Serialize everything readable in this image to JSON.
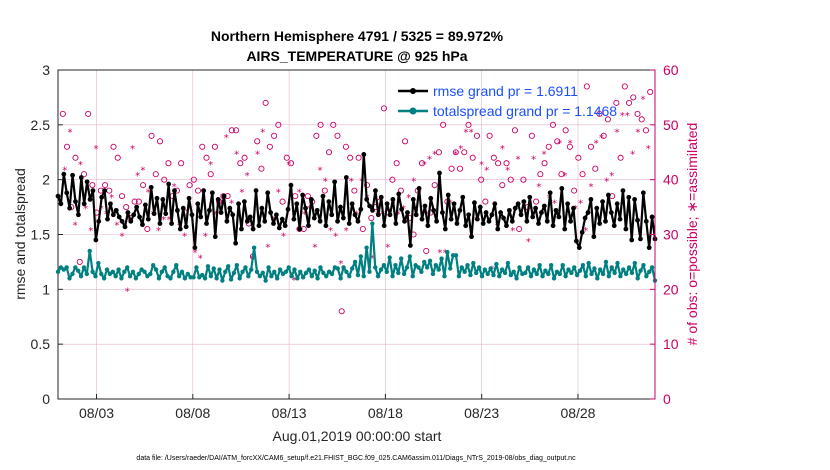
{
  "colors": {
    "rmse": "#000000",
    "spread": "#008080",
    "obs": "#cc0066",
    "legend_text": "#1a4fff",
    "grid": "#e6b3cc"
  },
  "chart_data": {
    "type": "line",
    "title_line1": "Northern Hemisphere 4791 / 5325 = 89.972%",
    "title_line2": "AIRS_TEMPERATURE @ 925 hPa",
    "xlabel": "Aug.01,2019 00:00:00 start",
    "ylabel": "rmse and totalspread",
    "y2label": "# of obs: o=possible; ∗=assimilated",
    "footnote": "data file: /Users/raeder/DAI/ATM_forcXX/CAM6_setup/f.e21.FHIST_BGC.f09_025.CAM6assim.011/Diags_NTrS_2019-08/obs_diag_output.nc",
    "xlim": [
      1.0,
      32.0
    ],
    "ylim": [
      0,
      3
    ],
    "y2lim": [
      0,
      60
    ],
    "xticks": [
      3,
      8,
      13,
      18,
      23,
      28
    ],
    "xtick_labels": [
      "08/03",
      "08/08",
      "08/13",
      "08/18",
      "08/23",
      "08/28"
    ],
    "yticks": [
      "0",
      "0.5",
      "1",
      "1.5",
      "2",
      "2.5",
      "3"
    ],
    "y2ticks": [
      "0",
      "10",
      "20",
      "30",
      "40",
      "50",
      "60"
    ],
    "legend": [
      {
        "label": "rmse grand pr = 1.6911",
        "series": "rmse"
      },
      {
        "label": "totalspread grand pr = 1.1468",
        "series": "spread"
      }
    ],
    "series": [
      {
        "name": "rmse",
        "values": [
          1.85,
          1.78,
          2.05,
          1.88,
          1.74,
          2.04,
          1.8,
          1.68,
          2.02,
          1.78,
          1.98,
          1.82,
          1.9,
          1.45,
          1.62,
          1.84,
          1.9,
          1.64,
          1.78,
          1.68,
          1.72,
          1.66,
          1.62,
          1.57,
          1.7,
          1.62,
          1.68,
          1.75,
          1.66,
          1.59,
          1.77,
          1.64,
          1.93,
          1.69,
          1.83,
          1.6,
          1.82,
          1.69,
          1.96,
          1.6,
          1.9,
          1.72,
          1.55,
          1.74,
          1.57,
          1.83,
          1.68,
          1.38,
          1.78,
          1.66,
          1.9,
          1.6,
          1.72,
          1.88,
          1.48,
          1.82,
          1.7,
          1.85,
          1.62,
          1.74,
          1.68,
          1.42,
          1.78,
          1.55,
          1.8,
          1.62,
          1.66,
          1.55,
          1.9,
          1.58,
          1.74,
          1.62,
          1.88,
          1.7,
          1.6,
          1.68,
          1.56,
          1.64,
          1.58,
          1.73,
          1.95,
          1.64,
          1.78,
          1.55,
          1.86,
          1.74,
          1.58,
          1.82,
          1.65,
          1.72,
          1.62,
          1.85,
          1.58,
          1.8,
          1.68,
          1.98,
          1.62,
          1.75,
          1.65,
          2.02,
          1.6,
          1.78,
          1.68,
          1.62,
          1.73,
          2.23,
          1.82,
          1.76,
          1.72,
          1.9,
          1.68,
          1.84,
          1.58,
          1.78,
          1.68,
          1.82,
          1.6,
          1.87,
          1.73,
          1.62,
          1.7,
          1.4,
          1.82,
          1.68,
          1.92,
          1.64,
          1.76,
          1.58,
          1.83,
          1.72,
          1.62,
          2.06,
          1.7,
          1.55,
          1.86,
          1.64,
          1.78,
          1.6,
          1.72,
          1.84,
          1.58,
          1.68,
          1.48,
          1.79,
          1.64,
          1.75,
          1.6,
          1.7,
          1.62,
          1.68,
          1.78,
          1.55,
          1.7,
          1.65,
          1.58,
          1.72,
          1.62,
          1.74,
          1.78,
          1.68,
          1.8,
          1.62,
          1.84,
          1.66,
          1.74,
          1.6,
          1.7,
          1.76,
          1.62,
          1.88,
          1.58,
          1.72,
          1.66,
          1.92,
          1.55,
          1.78,
          1.62,
          1.74,
          1.44,
          1.38,
          1.52,
          1.65,
          1.7,
          1.82,
          1.48,
          1.74,
          1.6,
          1.8,
          1.62,
          1.86,
          1.7,
          1.58,
          1.78,
          1.64,
          1.9,
          1.55,
          1.84,
          1.45,
          1.82,
          1.63,
          1.46,
          1.88,
          1.62,
          1.38,
          1.66,
          1.46
        ]
      },
      {
        "name": "totalspread",
        "values": [
          1.16,
          1.2,
          1.18,
          1.2,
          1.1,
          1.14,
          1.2,
          1.17,
          1.12,
          1.2,
          1.14,
          1.35,
          1.16,
          1.12,
          1.24,
          1.14,
          1.1,
          1.18,
          1.14,
          1.16,
          1.12,
          1.18,
          1.1,
          1.16,
          1.2,
          1.12,
          1.16,
          1.1,
          1.14,
          1.18,
          1.16,
          1.12,
          1.14,
          1.22,
          1.18,
          1.1,
          1.16,
          1.2,
          1.12,
          1.1,
          1.16,
          1.22,
          1.12,
          1.16,
          1.1,
          1.14,
          1.11,
          1.11,
          1.2,
          1.11,
          1.13,
          1.1,
          1.21,
          1.12,
          1.19,
          1.1,
          1.18,
          1.08,
          1.16,
          1.21,
          1.09,
          1.15,
          1.22,
          1.1,
          1.16,
          1.2,
          1.12,
          1.18,
          1.38,
          1.16,
          1.12,
          1.15,
          1.08,
          1.2,
          1.12,
          1.16,
          1.1,
          1.18,
          1.14,
          1.16,
          1.2,
          1.12,
          1.18,
          1.1,
          1.16,
          1.11,
          1.15,
          1.18,
          1.12,
          1.17,
          1.1,
          1.2,
          1.15,
          1.12,
          1.16,
          1.14,
          1.2,
          1.19,
          1.1,
          1.2,
          1.16,
          1.12,
          1.19,
          1.25,
          1.13,
          1.3,
          1.12,
          1.38,
          1.16,
          1.6,
          1.2,
          1.12,
          1.18,
          1.22,
          1.16,
          1.29,
          1.12,
          1.22,
          1.15,
          1.28,
          1.14,
          1.2,
          1.3,
          1.12,
          1.22,
          1.2,
          1.16,
          1.25,
          1.2,
          1.26,
          1.14,
          1.22,
          1.18,
          1.28,
          1.12,
          1.34,
          1.19,
          1.31,
          1.31,
          1.12,
          1.2,
          1.16,
          1.22,
          1.13,
          1.24,
          1.15,
          1.2,
          1.12,
          1.18,
          1.14,
          1.19,
          1.13,
          1.23,
          1.12,
          1.18,
          1.15,
          1.24,
          1.13,
          1.16,
          1.1,
          1.2,
          1.14,
          1.15,
          1.2,
          1.12,
          1.18,
          1.14,
          1.22,
          1.12,
          1.17,
          1.14,
          1.22,
          1.1,
          1.16,
          1.14,
          1.22,
          1.12,
          1.18,
          1.15,
          1.2,
          1.13,
          1.17,
          1.22,
          1.12,
          1.24,
          1.14,
          1.19,
          1.1,
          1.18,
          1.14,
          1.25,
          1.12,
          1.2,
          1.15,
          1.24,
          1.12,
          1.18,
          1.14,
          1.2,
          1.15,
          1.24,
          1.1,
          1.17,
          1.22,
          1.12,
          1.16,
          1.2,
          1.08
        ]
      },
      {
        "name": "obs_possible",
        "axis": "right",
        "values": [
          52,
          46,
          35,
          44,
          25,
          41,
          52,
          39,
          34,
          38,
          39,
          38,
          46,
          44,
          37,
          35,
          33,
          36,
          36,
          39,
          31,
          48,
          41,
          47,
          40,
          43,
          37,
          38,
          43,
          34,
          39,
          40,
          38,
          46,
          44,
          41,
          46,
          36,
          37,
          37,
          49,
          49,
          43,
          44,
          32,
          26,
          47,
          42,
          54,
          46,
          48,
          50,
          36,
          44,
          43,
          37,
          31,
          31,
          37,
          36,
          48,
          50,
          38,
          45,
          50,
          48,
          16,
          46,
          44,
          38,
          44,
          31,
          39,
          33,
          35,
          36,
          53,
          34,
          40,
          43,
          38,
          47,
          33,
          30,
          38,
          43,
          27,
          34,
          39,
          45,
          50,
          36,
          42,
          45,
          42,
          45,
          50,
          44,
          48,
          40,
          36,
          48,
          44,
          43,
          39,
          43,
          40,
          49,
          31,
          40,
          35,
          48,
          36,
          41,
          43,
          46,
          50,
          47,
          41,
          49,
          46,
          38,
          44,
          41,
          57,
          46,
          42,
          52,
          48,
          51,
          37,
          54,
          44,
          57,
          54,
          55,
          52,
          51,
          49,
          56
        ]
      },
      {
        "name": "obs_assimilated",
        "axis": "right",
        "values": [
          42,
          49,
          32,
          43,
          35,
          31,
          46,
          35,
          34,
          37,
          32,
          30,
          20,
          46,
          41,
          42,
          38,
          34,
          31,
          33,
          33,
          39,
          32,
          30,
          35,
          27,
          26,
          30,
          43,
          34,
          36,
          48,
          36,
          45,
          38,
          41,
          26,
          45,
          49,
          28,
          33,
          38,
          30,
          43,
          22,
          38,
          34,
          35,
          28,
          42,
          40,
          31,
          30,
          25,
          31,
          40,
          34,
          40,
          37,
          26,
          34,
          34,
          28,
          36,
          34,
          35,
          37,
          40,
          38,
          43,
          44,
          45,
          27,
          27,
          36,
          45,
          46,
          49,
          49,
          33,
          43,
          42,
          24,
          32,
          46,
          42,
          31,
          44,
          36,
          29,
          44,
          39,
          45,
          37,
          36,
          47,
          41,
          47,
          35,
          36,
          31,
          39,
          47,
          48,
          40,
          41,
          49,
          52,
          52,
          45,
          49,
          55,
          46
        ]
      }
    ]
  }
}
